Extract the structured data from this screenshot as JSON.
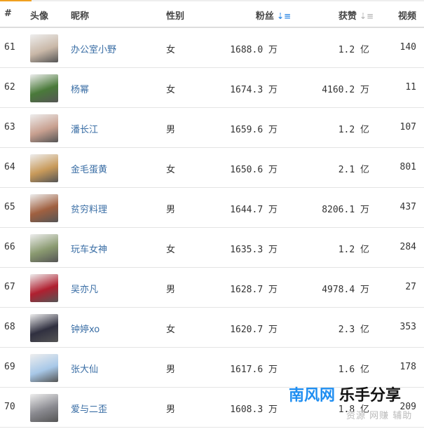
{
  "header": {
    "rank": "#",
    "avatar": "头像",
    "name": "昵称",
    "gender": "性别",
    "fans": "粉丝",
    "likes": "获赞",
    "videos": "视频",
    "sort_icon": "sort-desc-icon"
  },
  "rows": [
    {
      "rank": "61",
      "name": "办公室小野",
      "gender": "女",
      "fans": "1688.0 万",
      "likes": "1.2 亿",
      "videos": "140",
      "color": "#c9b8a8"
    },
    {
      "rank": "62",
      "name": "杨幂",
      "gender": "女",
      "fans": "1674.3 万",
      "likes": "4160.2 万",
      "videos": "11",
      "color": "#4a7a3a"
    },
    {
      "rank": "63",
      "name": "潘长江",
      "gender": "男",
      "fans": "1659.6 万",
      "likes": "1.2 亿",
      "videos": "107",
      "color": "#c8a090"
    },
    {
      "rank": "64",
      "name": "金毛蛋黄",
      "gender": "女",
      "fans": "1650.6 万",
      "likes": "2.1 亿",
      "videos": "801",
      "color": "#c89a5a"
    },
    {
      "rank": "65",
      "name": "贫穷料理",
      "gender": "男",
      "fans": "1644.7 万",
      "likes": "8206.1 万",
      "videos": "437",
      "color": "#a06040"
    },
    {
      "rank": "66",
      "name": "玩车女神",
      "gender": "女",
      "fans": "1635.3 万",
      "likes": "1.2 亿",
      "videos": "284",
      "color": "#8a9a70"
    },
    {
      "rank": "67",
      "name": "吴亦凡",
      "gender": "男",
      "fans": "1628.7 万",
      "likes": "4978.4 万",
      "videos": "27",
      "color": "#b02030"
    },
    {
      "rank": "68",
      "name": "钟婷xo",
      "gender": "女",
      "fans": "1620.7 万",
      "likes": "2.3 亿",
      "videos": "353",
      "color": "#303040"
    },
    {
      "rank": "69",
      "name": "张大仙",
      "gender": "男",
      "fans": "1617.6 万",
      "likes": "1.6 亿",
      "videos": "178",
      "color": "#a8c8e8"
    },
    {
      "rank": "70",
      "name": "爱与二歪",
      "gender": "男",
      "fans": "1608.3 万",
      "likes": "1.8 亿",
      "videos": "209",
      "color": "#8a8a90"
    }
  ],
  "watermark": {
    "brand": "南风网",
    "tag": "乐手分享",
    "sub": "资源 网赚 辅助"
  }
}
